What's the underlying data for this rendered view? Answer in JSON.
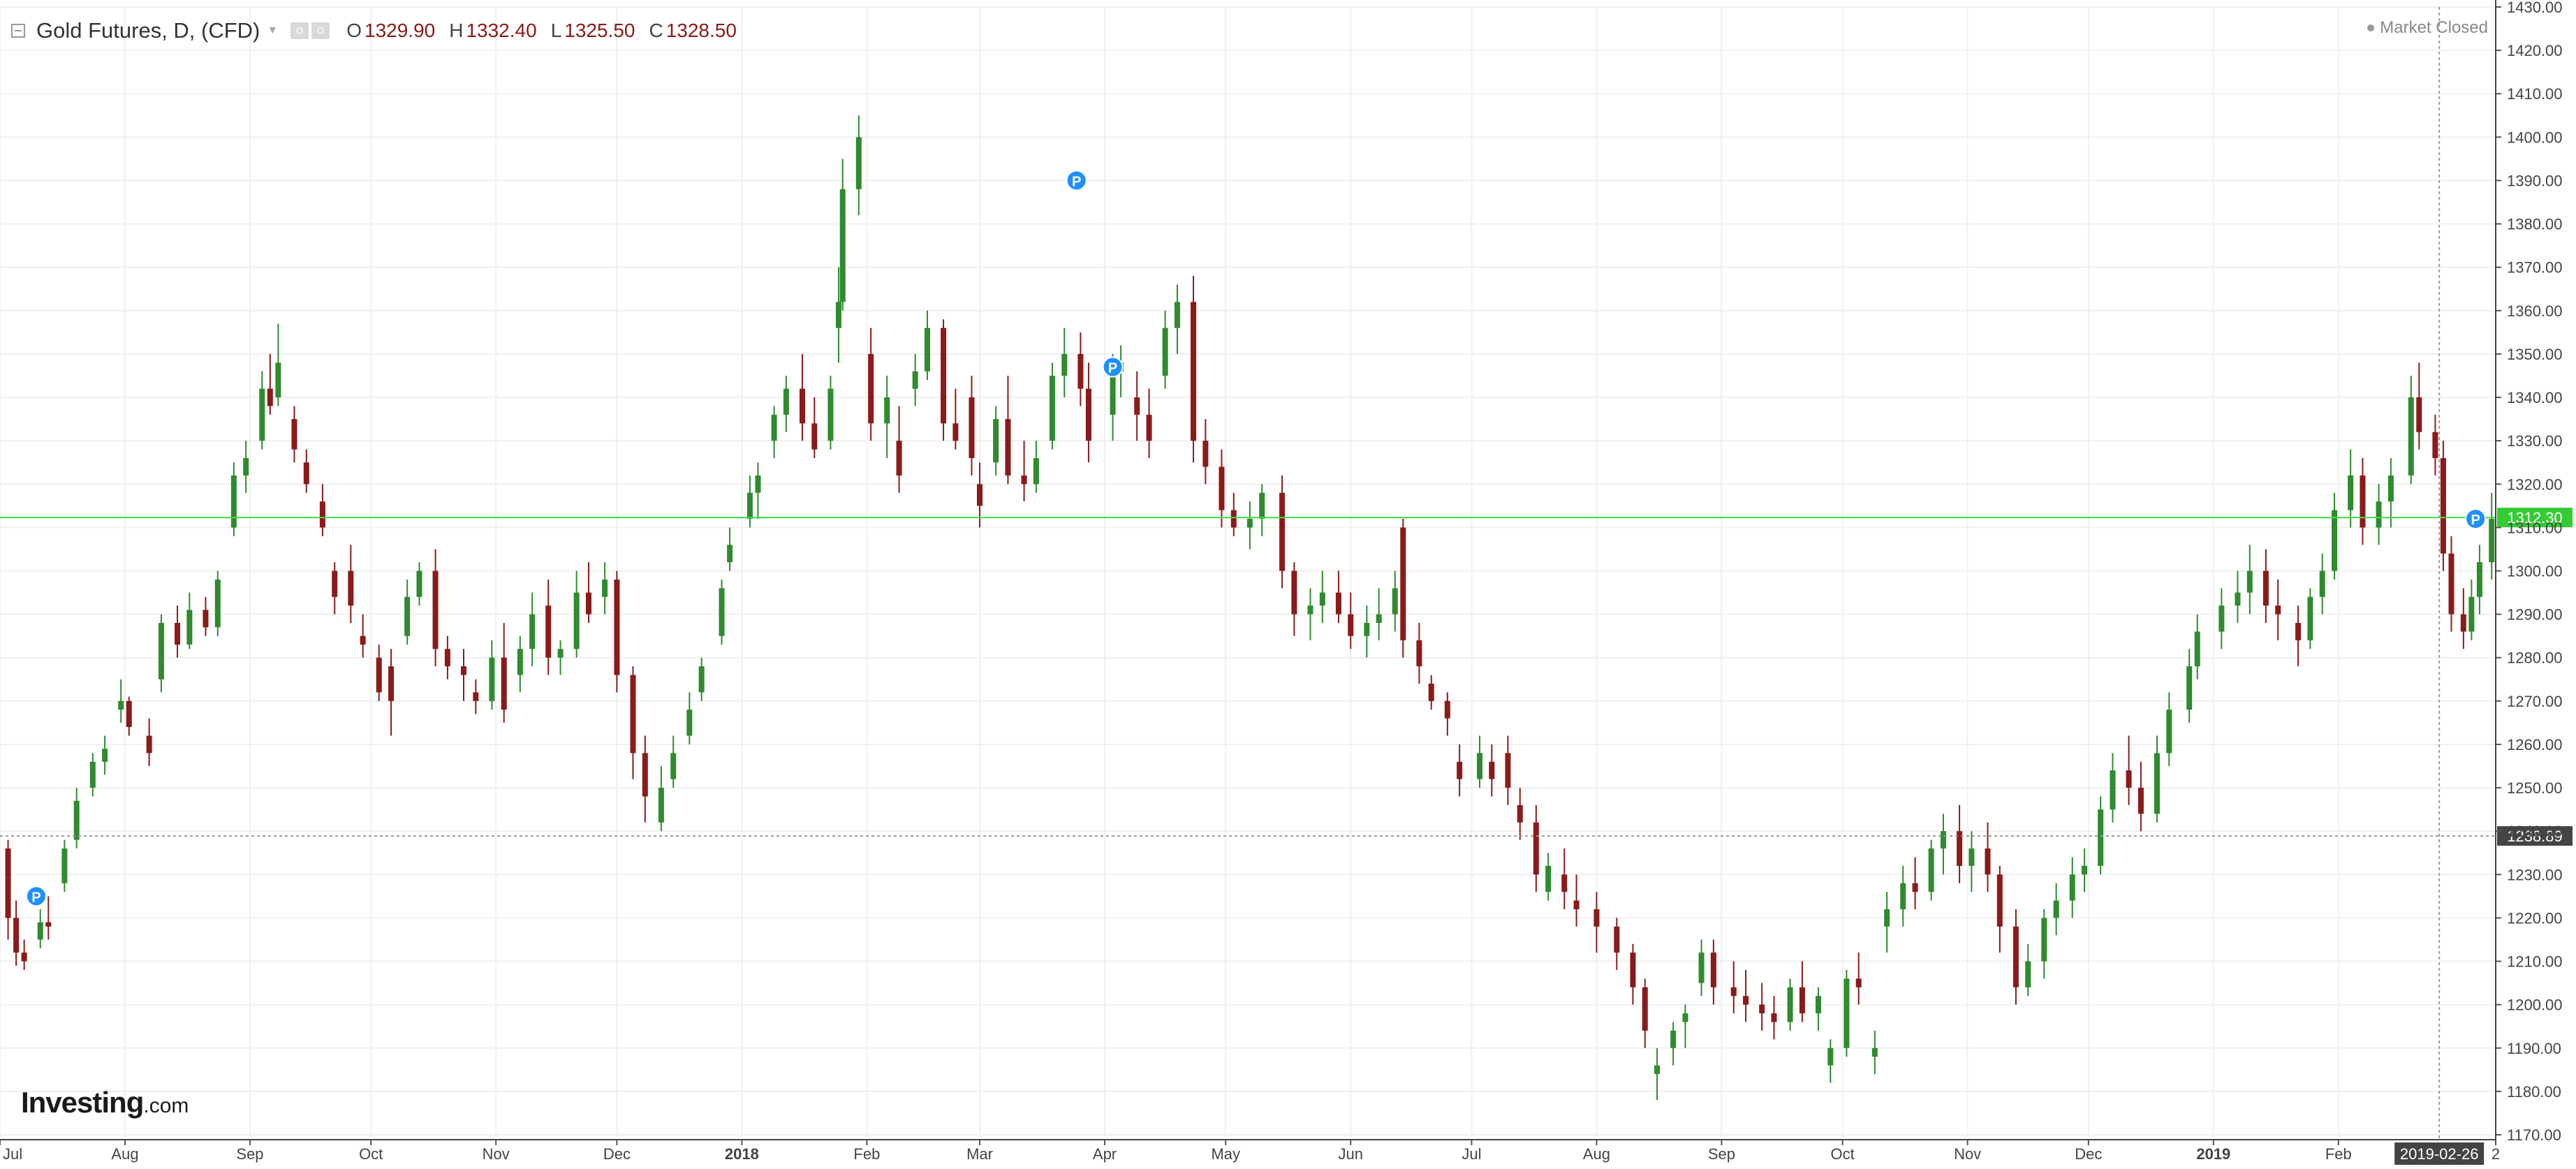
{
  "header": {
    "title": "Gold Futures, D, (CFD)",
    "o_label": "O",
    "o_value": "1329.90",
    "h_label": "H",
    "h_value": "1332.40",
    "l_label": "L",
    "l_value": "1325.50",
    "c_label": "C",
    "c_value": "1328.50",
    "market_status": "Market Closed"
  },
  "brand": {
    "name": "Investing",
    "domain": ".com"
  },
  "price_tags": {
    "last": "1312.30",
    "crosshair": "1238.89",
    "date_tag": "2019-02-26"
  },
  "colors": {
    "up": "#2e8b2e",
    "down": "#8b1a1a",
    "last_line": "#44dd44",
    "grid": "#f0f0f0",
    "pin": "#1e90ff"
  },
  "pin_label": "P",
  "chart_data": {
    "type": "candlestick",
    "ylim": [
      1170,
      1430
    ],
    "yticks": [
      1170,
      1180,
      1190,
      1200,
      1210,
      1220,
      1230,
      1240,
      1250,
      1260,
      1270,
      1280,
      1290,
      1300,
      1310,
      1320,
      1330,
      1340,
      1350,
      1360,
      1370,
      1380,
      1390,
      1400,
      1410,
      1420,
      1430
    ],
    "x_ticks": [
      "Jul",
      "Aug",
      "Sep",
      "Oct",
      "Nov",
      "Dec",
      "2018",
      "Feb",
      "Mar",
      "Apr",
      "May",
      "Jun",
      "Jul",
      "Aug",
      "Sep",
      "Oct",
      "Nov",
      "Dec",
      "2019",
      "Feb",
      "2019-02-26",
      "2"
    ],
    "x_start": "2017-07-01",
    "x_end": "2019-03-12",
    "pins": [
      "2017-07-10",
      "2018-03-25",
      "2018-04-03",
      "2019-03-07"
    ],
    "ohlc": [
      [
        "2017-07-03",
        1236,
        1238,
        1215,
        1220
      ],
      [
        "2017-07-05",
        1220,
        1224,
        1209,
        1212
      ],
      [
        "2017-07-07",
        1212,
        1215,
        1208,
        1210
      ],
      [
        "2017-07-11",
        1215,
        1222,
        1213,
        1219
      ],
      [
        "2017-07-13",
        1219,
        1225,
        1215,
        1218
      ],
      [
        "2017-07-17",
        1228,
        1238,
        1226,
        1236
      ],
      [
        "2017-07-20",
        1238,
        1250,
        1236,
        1247
      ],
      [
        "2017-07-24",
        1250,
        1258,
        1248,
        1256
      ],
      [
        "2017-07-27",
        1256,
        1262,
        1253,
        1259
      ],
      [
        "2017-07-31",
        1268,
        1275,
        1265,
        1270
      ],
      [
        "2017-08-02",
        1270,
        1271,
        1262,
        1264
      ],
      [
        "2017-08-07",
        1262,
        1266,
        1255,
        1258
      ],
      [
        "2017-08-10",
        1275,
        1290,
        1272,
        1288
      ],
      [
        "2017-08-14",
        1288,
        1292,
        1280,
        1283
      ],
      [
        "2017-08-17",
        1283,
        1295,
        1282,
        1291
      ],
      [
        "2017-08-21",
        1291,
        1294,
        1285,
        1287
      ],
      [
        "2017-08-24",
        1287,
        1300,
        1285,
        1298
      ],
      [
        "2017-08-28",
        1310,
        1325,
        1308,
        1322
      ],
      [
        "2017-08-31",
        1322,
        1330,
        1318,
        1326
      ],
      [
        "2017-09-04",
        1330,
        1346,
        1328,
        1342
      ],
      [
        "2017-09-06",
        1342,
        1350,
        1336,
        1338
      ],
      [
        "2017-09-08",
        1340,
        1357,
        1338,
        1348
      ],
      [
        "2017-09-12",
        1335,
        1338,
        1325,
        1328
      ],
      [
        "2017-09-15",
        1325,
        1328,
        1318,
        1320
      ],
      [
        "2017-09-19",
        1316,
        1320,
        1308,
        1310
      ],
      [
        "2017-09-22",
        1300,
        1302,
        1290,
        1294
      ],
      [
        "2017-09-26",
        1300,
        1306,
        1288,
        1292
      ],
      [
        "2017-09-29",
        1285,
        1290,
        1280,
        1283
      ],
      [
        "2017-10-03",
        1280,
        1283,
        1270,
        1272
      ],
      [
        "2017-10-06",
        1278,
        1282,
        1262,
        1270
      ],
      [
        "2017-10-10",
        1285,
        1298,
        1283,
        1294
      ],
      [
        "2017-10-13",
        1294,
        1302,
        1292,
        1300
      ],
      [
        "2017-10-17",
        1300,
        1305,
        1278,
        1282
      ],
      [
        "2017-10-20",
        1282,
        1285,
        1275,
        1278
      ],
      [
        "2017-10-24",
        1278,
        1282,
        1270,
        1276
      ],
      [
        "2017-10-27",
        1272,
        1275,
        1267,
        1270
      ],
      [
        "2017-10-31",
        1270,
        1284,
        1268,
        1280
      ],
      [
        "2017-11-03",
        1280,
        1288,
        1265,
        1268
      ],
      [
        "2017-11-07",
        1276,
        1285,
        1272,
        1282
      ],
      [
        "2017-11-10",
        1282,
        1295,
        1278,
        1290
      ],
      [
        "2017-11-14",
        1292,
        1298,
        1276,
        1280
      ],
      [
        "2017-11-17",
        1280,
        1284,
        1276,
        1282
      ],
      [
        "2017-11-21",
        1282,
        1300,
        1280,
        1295
      ],
      [
        "2017-11-24",
        1295,
        1302,
        1288,
        1290
      ],
      [
        "2017-11-28",
        1294,
        1302,
        1290,
        1298
      ],
      [
        "2017-12-01",
        1298,
        1300,
        1272,
        1276
      ],
      [
        "2017-12-05",
        1276,
        1278,
        1252,
        1258
      ],
      [
        "2017-12-08",
        1258,
        1262,
        1242,
        1248
      ],
      [
        "2017-12-12",
        1242,
        1255,
        1240,
        1250
      ],
      [
        "2017-12-15",
        1252,
        1262,
        1250,
        1258
      ],
      [
        "2017-12-19",
        1262,
        1272,
        1260,
        1268
      ],
      [
        "2017-12-22",
        1272,
        1280,
        1270,
        1278
      ],
      [
        "2017-12-27",
        1285,
        1298,
        1283,
        1296
      ],
      [
        "2017-12-29",
        1302,
        1310,
        1300,
        1306
      ],
      [
        "2018-01-03",
        1312,
        1322,
        1310,
        1318
      ],
      [
        "2018-01-05",
        1318,
        1325,
        1312,
        1322
      ],
      [
        "2018-01-09",
        1330,
        1338,
        1326,
        1336
      ],
      [
        "2018-01-12",
        1336,
        1345,
        1332,
        1342
      ],
      [
        "2018-01-16",
        1342,
        1350,
        1330,
        1334
      ],
      [
        "2018-01-19",
        1334,
        1340,
        1326,
        1328
      ],
      [
        "2018-01-23",
        1330,
        1345,
        1328,
        1342
      ],
      [
        "2018-01-25",
        1356,
        1370,
        1348,
        1362
      ],
      [
        "2018-01-26",
        1362,
        1395,
        1360,
        1388
      ],
      [
        "2018-01-30",
        1388,
        1405,
        1382,
        1400
      ],
      [
        "2018-02-02",
        1350,
        1356,
        1330,
        1334
      ],
      [
        "2018-02-06",
        1334,
        1345,
        1326,
        1340
      ],
      [
        "2018-02-09",
        1330,
        1338,
        1318,
        1322
      ],
      [
        "2018-02-13",
        1342,
        1350,
        1338,
        1346
      ],
      [
        "2018-02-16",
        1346,
        1360,
        1344,
        1356
      ],
      [
        "2018-02-20",
        1356,
        1358,
        1330,
        1334
      ],
      [
        "2018-02-23",
        1334,
        1342,
        1328,
        1330
      ],
      [
        "2018-02-27",
        1340,
        1345,
        1322,
        1326
      ],
      [
        "2018-03-01",
        1320,
        1325,
        1310,
        1315
      ],
      [
        "2018-03-05",
        1325,
        1338,
        1322,
        1335
      ],
      [
        "2018-03-08",
        1335,
        1345,
        1320,
        1322
      ],
      [
        "2018-03-12",
        1322,
        1330,
        1316,
        1320
      ],
      [
        "2018-03-15",
        1320,
        1330,
        1318,
        1326
      ],
      [
        "2018-03-19",
        1330,
        1348,
        1328,
        1345
      ],
      [
        "2018-03-22",
        1345,
        1356,
        1340,
        1350
      ],
      [
        "2018-03-26",
        1350,
        1355,
        1338,
        1342
      ],
      [
        "2018-03-28",
        1342,
        1348,
        1325,
        1330
      ],
      [
        "2018-04-03",
        1336,
        1350,
        1330,
        1346
      ],
      [
        "2018-04-05",
        1346,
        1352,
        1340,
        1348
      ],
      [
        "2018-04-09",
        1340,
        1346,
        1330,
        1336
      ],
      [
        "2018-04-12",
        1336,
        1342,
        1326,
        1330
      ],
      [
        "2018-04-16",
        1345,
        1360,
        1342,
        1356
      ],
      [
        "2018-04-19",
        1356,
        1366,
        1350,
        1362
      ],
      [
        "2018-04-23",
        1362,
        1368,
        1325,
        1330
      ],
      [
        "2018-04-26",
        1330,
        1335,
        1320,
        1324
      ],
      [
        "2018-04-30",
        1324,
        1328,
        1310,
        1314
      ],
      [
        "2018-05-03",
        1314,
        1318,
        1308,
        1310
      ],
      [
        "2018-05-07",
        1310,
        1316,
        1305,
        1312
      ],
      [
        "2018-05-10",
        1312,
        1320,
        1308,
        1318
      ],
      [
        "2018-05-15",
        1318,
        1322,
        1296,
        1300
      ],
      [
        "2018-05-18",
        1300,
        1302,
        1285,
        1290
      ],
      [
        "2018-05-22",
        1290,
        1296,
        1284,
        1292
      ],
      [
        "2018-05-25",
        1292,
        1300,
        1288,
        1295
      ],
      [
        "2018-05-29",
        1295,
        1300,
        1288,
        1290
      ],
      [
        "2018-06-01",
        1290,
        1295,
        1282,
        1285
      ],
      [
        "2018-06-05",
        1285,
        1292,
        1280,
        1288
      ],
      [
        "2018-06-08",
        1288,
        1296,
        1284,
        1290
      ],
      [
        "2018-06-12",
        1290,
        1300,
        1286,
        1296
      ],
      [
        "2018-06-14",
        1310,
        1312,
        1280,
        1284
      ],
      [
        "2018-06-18",
        1284,
        1288,
        1274,
        1278
      ],
      [
        "2018-06-21",
        1274,
        1276,
        1268,
        1270
      ],
      [
        "2018-06-25",
        1270,
        1272,
        1262,
        1266
      ],
      [
        "2018-06-28",
        1256,
        1260,
        1248,
        1252
      ],
      [
        "2018-07-03",
        1252,
        1262,
        1250,
        1258
      ],
      [
        "2018-07-06",
        1256,
        1260,
        1248,
        1252
      ],
      [
        "2018-07-10",
        1258,
        1262,
        1246,
        1250
      ],
      [
        "2018-07-13",
        1246,
        1250,
        1238,
        1242
      ],
      [
        "2018-07-17",
        1242,
        1246,
        1226,
        1230
      ],
      [
        "2018-07-20",
        1226,
        1235,
        1224,
        1232
      ],
      [
        "2018-07-24",
        1230,
        1236,
        1222,
        1226
      ],
      [
        "2018-07-27",
        1224,
        1230,
        1218,
        1222
      ],
      [
        "2018-08-01",
        1222,
        1226,
        1212,
        1218
      ],
      [
        "2018-08-06",
        1218,
        1220,
        1208,
        1212
      ],
      [
        "2018-08-10",
        1212,
        1214,
        1200,
        1204
      ],
      [
        "2018-08-13",
        1204,
        1206,
        1190,
        1194
      ],
      [
        "2018-08-16",
        1184,
        1190,
        1178,
        1186
      ],
      [
        "2018-08-20",
        1190,
        1196,
        1186,
        1194
      ],
      [
        "2018-08-23",
        1196,
        1200,
        1190,
        1198
      ],
      [
        "2018-08-27",
        1205,
        1215,
        1202,
        1212
      ],
      [
        "2018-08-30",
        1212,
        1215,
        1200,
        1204
      ],
      [
        "2018-09-04",
        1204,
        1210,
        1198,
        1202
      ],
      [
        "2018-09-07",
        1202,
        1208,
        1196,
        1200
      ],
      [
        "2018-09-11",
        1200,
        1205,
        1194,
        1198
      ],
      [
        "2018-09-14",
        1198,
        1202,
        1192,
        1196
      ],
      [
        "2018-09-18",
        1196,
        1206,
        1194,
        1204
      ],
      [
        "2018-09-21",
        1204,
        1210,
        1196,
        1198
      ],
      [
        "2018-09-25",
        1198,
        1204,
        1194,
        1202
      ],
      [
        "2018-09-28",
        1186,
        1192,
        1182,
        1190
      ],
      [
        "2018-10-02",
        1190,
        1208,
        1188,
        1206
      ],
      [
        "2018-10-05",
        1206,
        1212,
        1200,
        1204
      ],
      [
        "2018-10-09",
        1188,
        1194,
        1184,
        1190
      ],
      [
        "2018-10-12",
        1218,
        1226,
        1212,
        1222
      ],
      [
        "2018-10-16",
        1222,
        1232,
        1218,
        1228
      ],
      [
        "2018-10-19",
        1228,
        1234,
        1222,
        1226
      ],
      [
        "2018-10-23",
        1226,
        1238,
        1224,
        1236
      ],
      [
        "2018-10-26",
        1236,
        1244,
        1230,
        1240
      ],
      [
        "2018-10-30",
        1240,
        1246,
        1228,
        1232
      ],
      [
        "2018-11-02",
        1232,
        1240,
        1226,
        1236
      ],
      [
        "2018-11-06",
        1236,
        1242,
        1226,
        1230
      ],
      [
        "2018-11-09",
        1230,
        1232,
        1212,
        1218
      ],
      [
        "2018-11-13",
        1218,
        1222,
        1200,
        1204
      ],
      [
        "2018-11-16",
        1204,
        1214,
        1202,
        1210
      ],
      [
        "2018-11-20",
        1210,
        1222,
        1206,
        1220
      ],
      [
        "2018-11-23",
        1220,
        1228,
        1216,
        1224
      ],
      [
        "2018-11-27",
        1224,
        1234,
        1220,
        1230
      ],
      [
        "2018-11-30",
        1230,
        1236,
        1226,
        1232
      ],
      [
        "2018-12-04",
        1232,
        1248,
        1230,
        1245
      ],
      [
        "2018-12-07",
        1245,
        1258,
        1242,
        1254
      ],
      [
        "2018-12-11",
        1254,
        1262,
        1246,
        1250
      ],
      [
        "2018-12-14",
        1250,
        1256,
        1240,
        1244
      ],
      [
        "2018-12-18",
        1244,
        1262,
        1242,
        1258
      ],
      [
        "2018-12-21",
        1258,
        1272,
        1255,
        1268
      ],
      [
        "2018-12-26",
        1268,
        1282,
        1265,
        1278
      ],
      [
        "2018-12-28",
        1278,
        1290,
        1275,
        1286
      ],
      [
        "2019-01-03",
        1286,
        1296,
        1282,
        1292
      ],
      [
        "2019-01-07",
        1292,
        1300,
        1288,
        1295
      ],
      [
        "2019-01-10",
        1295,
        1306,
        1290,
        1300
      ],
      [
        "2019-01-14",
        1300,
        1305,
        1288,
        1292
      ],
      [
        "2019-01-17",
        1292,
        1298,
        1284,
        1290
      ],
      [
        "2019-01-22",
        1288,
        1292,
        1278,
        1284
      ],
      [
        "2019-01-25",
        1284,
        1296,
        1282,
        1294
      ],
      [
        "2019-01-28",
        1294,
        1304,
        1290,
        1300
      ],
      [
        "2019-01-31",
        1300,
        1318,
        1298,
        1314
      ],
      [
        "2019-02-04",
        1314,
        1328,
        1310,
        1322
      ],
      [
        "2019-02-07",
        1322,
        1326,
        1306,
        1310
      ],
      [
        "2019-02-11",
        1310,
        1320,
        1306,
        1316
      ],
      [
        "2019-02-14",
        1316,
        1326,
        1310,
        1322
      ],
      [
        "2019-02-19",
        1322,
        1345,
        1320,
        1340
      ],
      [
        "2019-02-21",
        1340,
        1348,
        1328,
        1332
      ],
      [
        "2019-02-25",
        1332,
        1336,
        1322,
        1326
      ],
      [
        "2019-02-27",
        1326,
        1330,
        1300,
        1304
      ],
      [
        "2019-03-01",
        1304,
        1308,
        1286,
        1290
      ],
      [
        "2019-03-04",
        1290,
        1296,
        1282,
        1286
      ],
      [
        "2019-03-06",
        1286,
        1298,
        1284,
        1294
      ],
      [
        "2019-03-08",
        1294,
        1306,
        1290,
        1302
      ],
      [
        "2019-03-11",
        1302,
        1318,
        1298,
        1312
      ]
    ]
  }
}
